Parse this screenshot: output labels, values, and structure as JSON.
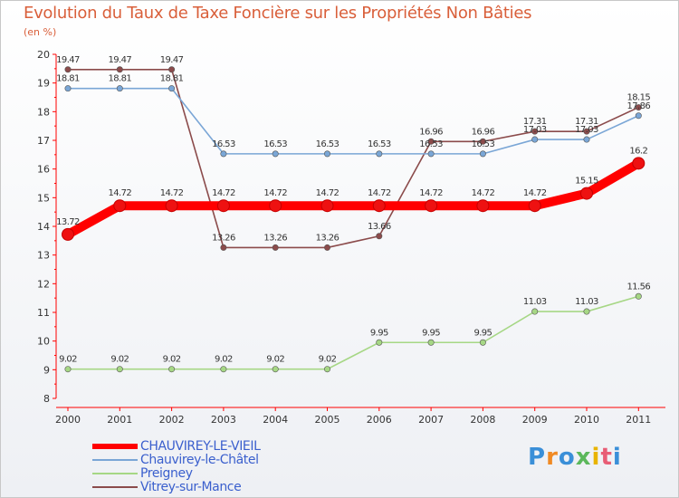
{
  "header": {
    "title": "Evolution du Taux de Taxe Foncière sur les Propriétés Non Bâties",
    "unit": "(en %)"
  },
  "chart_data": {
    "type": "line",
    "title": "Evolution du Taux de Taxe Foncière sur les Propriétés Non Bâties",
    "ylabel": "(en %)",
    "xlabel": "",
    "x": [
      2000,
      2001,
      2002,
      2003,
      2004,
      2005,
      2006,
      2007,
      2008,
      2009,
      2010,
      2011
    ],
    "ylim": [
      8,
      20
    ],
    "yticks": [
      8,
      9,
      10,
      11,
      12,
      13,
      14,
      15,
      16,
      17,
      18,
      19,
      20
    ],
    "grid": false,
    "legend_position": "bottom-left",
    "series": [
      {
        "name": "CHAUVIREY-LE-VIEIL",
        "color": "#ff0000",
        "emphasis": true,
        "values": [
          13.72,
          14.72,
          14.72,
          14.72,
          14.72,
          14.72,
          14.72,
          14.72,
          14.72,
          14.72,
          15.15,
          16.2
        ],
        "labels": [
          "13.72",
          "14.72",
          "14.72",
          "14.72",
          "14.72",
          "14.72",
          "14.72",
          "14.72",
          "14.72",
          "14.72",
          "15.15",
          "16.2"
        ]
      },
      {
        "name": "Chauvirey-le-Châtel",
        "color": "#7aa6d6",
        "emphasis": false,
        "values": [
          18.81,
          18.81,
          18.81,
          16.53,
          16.53,
          16.53,
          16.53,
          16.53,
          16.53,
          17.03,
          17.03,
          17.86
        ],
        "labels": [
          "18.81",
          "18.81",
          "18.81",
          "16.53",
          "16.53",
          "16.53",
          "16.53",
          "16.53",
          "16.53",
          "17.03",
          "17.03",
          "17.86"
        ]
      },
      {
        "name": "Preigney",
        "color": "#a6d785",
        "emphasis": false,
        "values": [
          9.02,
          9.02,
          9.02,
          9.02,
          9.02,
          9.02,
          9.95,
          9.95,
          9.95,
          11.03,
          11.03,
          11.56
        ],
        "labels": [
          "9.02",
          "9.02",
          "9.02",
          "9.02",
          "9.02",
          "9.02",
          "9.95",
          "9.95",
          "9.95",
          "11.03",
          "11.03",
          "11.56"
        ]
      },
      {
        "name": "Vitrey-sur-Mance",
        "color": "#8b4b4b",
        "emphasis": false,
        "values": [
          19.47,
          19.47,
          19.47,
          13.26,
          13.26,
          13.26,
          13.66,
          16.96,
          16.96,
          17.31,
          17.31,
          18.15
        ],
        "labels": [
          "19.47",
          "19.47",
          "19.47",
          "13.26",
          "13.26",
          "13.26",
          "13.66",
          "16.96",
          "16.96",
          "17.31",
          "17.31",
          "18.15"
        ]
      }
    ]
  },
  "logo": {
    "text": "Proxiti",
    "letters": [
      "P",
      "r",
      "o",
      "x",
      "i",
      "t",
      "i"
    ],
    "colors": [
      "#3a8fd8",
      "#f08a24",
      "#3a8fd8",
      "#5cb85c",
      "#e8b400",
      "#e85d75",
      "#3a8fd8"
    ]
  }
}
